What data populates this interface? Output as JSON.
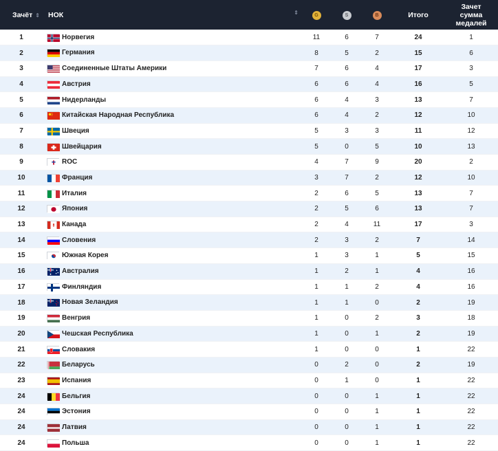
{
  "header": {
    "rank": "Зачёт",
    "noc": "НОК",
    "gold": "G",
    "silver": "S",
    "bronze": "B",
    "total": "Итого",
    "score_line1": "Зачет",
    "score_line2": "сумма",
    "score_line3": "медалей"
  },
  "rows": [
    {
      "rank": "1",
      "country": "Норвегия",
      "flag": "norway",
      "g": "11",
      "s": "6",
      "b": "7",
      "t": "24",
      "sc": "1"
    },
    {
      "rank": "2",
      "country": "Германия",
      "flag": "germany",
      "g": "8",
      "s": "5",
      "b": "2",
      "t": "15",
      "sc": "6"
    },
    {
      "rank": "3",
      "country": "Соединенные Штаты Америки",
      "flag": "usa",
      "g": "7",
      "s": "6",
      "b": "4",
      "t": "17",
      "sc": "3"
    },
    {
      "rank": "4",
      "country": "Австрия",
      "flag": "austria",
      "g": "6",
      "s": "6",
      "b": "4",
      "t": "16",
      "sc": "5"
    },
    {
      "rank": "5",
      "country": "Нидерланды",
      "flag": "netherlands",
      "g": "6",
      "s": "4",
      "b": "3",
      "t": "13",
      "sc": "7"
    },
    {
      "rank": "6",
      "country": "Китайская Народная Республика",
      "flag": "china",
      "g": "6",
      "s": "4",
      "b": "2",
      "t": "12",
      "sc": "10"
    },
    {
      "rank": "7",
      "country": "Швеция",
      "flag": "sweden",
      "g": "5",
      "s": "3",
      "b": "3",
      "t": "11",
      "sc": "12"
    },
    {
      "rank": "8",
      "country": "Швейцария",
      "flag": "switzerland",
      "g": "5",
      "s": "0",
      "b": "5",
      "t": "10",
      "sc": "13"
    },
    {
      "rank": "9",
      "country": "ROC",
      "flag": "roc",
      "g": "4",
      "s": "7",
      "b": "9",
      "t": "20",
      "sc": "2"
    },
    {
      "rank": "10",
      "country": "Франция",
      "flag": "france",
      "g": "3",
      "s": "7",
      "b": "2",
      "t": "12",
      "sc": "10"
    },
    {
      "rank": "11",
      "country": "Италия",
      "flag": "italy",
      "g": "2",
      "s": "6",
      "b": "5",
      "t": "13",
      "sc": "7"
    },
    {
      "rank": "12",
      "country": "Япония",
      "flag": "japan",
      "g": "2",
      "s": "5",
      "b": "6",
      "t": "13",
      "sc": "7"
    },
    {
      "rank": "13",
      "country": "Канада",
      "flag": "canada",
      "g": "2",
      "s": "4",
      "b": "11",
      "t": "17",
      "sc": "3"
    },
    {
      "rank": "14",
      "country": "Словения",
      "flag": "slovenia",
      "g": "2",
      "s": "3",
      "b": "2",
      "t": "7",
      "sc": "14"
    },
    {
      "rank": "15",
      "country": "Южная Корея",
      "flag": "korea",
      "g": "1",
      "s": "3",
      "b": "1",
      "t": "5",
      "sc": "15"
    },
    {
      "rank": "16",
      "country": "Австралия",
      "flag": "australia",
      "g": "1",
      "s": "2",
      "b": "1",
      "t": "4",
      "sc": "16"
    },
    {
      "rank": "17",
      "country": "Финляндия",
      "flag": "finland",
      "g": "1",
      "s": "1",
      "b": "2",
      "t": "4",
      "sc": "16"
    },
    {
      "rank": "18",
      "country": "Новая Зеландия",
      "flag": "newzealand",
      "g": "1",
      "s": "1",
      "b": "0",
      "t": "2",
      "sc": "19"
    },
    {
      "rank": "19",
      "country": "Венгрия",
      "flag": "hungary",
      "g": "1",
      "s": "0",
      "b": "2",
      "t": "3",
      "sc": "18"
    },
    {
      "rank": "20",
      "country": "Чешская Республика",
      "flag": "czech",
      "g": "1",
      "s": "0",
      "b": "1",
      "t": "2",
      "sc": "19"
    },
    {
      "rank": "21",
      "country": "Словакия",
      "flag": "slovakia",
      "g": "1",
      "s": "0",
      "b": "0",
      "t": "1",
      "sc": "22"
    },
    {
      "rank": "22",
      "country": "Беларусь",
      "flag": "belarus",
      "g": "0",
      "s": "2",
      "b": "0",
      "t": "2",
      "sc": "19"
    },
    {
      "rank": "23",
      "country": "Испания",
      "flag": "spain",
      "g": "0",
      "s": "1",
      "b": "0",
      "t": "1",
      "sc": "22"
    },
    {
      "rank": "24",
      "country": "Бельгия",
      "flag": "belgium",
      "g": "0",
      "s": "0",
      "b": "1",
      "t": "1",
      "sc": "22"
    },
    {
      "rank": "24",
      "country": "Эстония",
      "flag": "estonia",
      "g": "0",
      "s": "0",
      "b": "1",
      "t": "1",
      "sc": "22"
    },
    {
      "rank": "24",
      "country": "Латвия",
      "flag": "latvia",
      "g": "0",
      "s": "0",
      "b": "1",
      "t": "1",
      "sc": "22"
    },
    {
      "rank": "24",
      "country": "Польша",
      "flag": "poland",
      "g": "0",
      "s": "0",
      "b": "1",
      "t": "1",
      "sc": "22"
    }
  ]
}
